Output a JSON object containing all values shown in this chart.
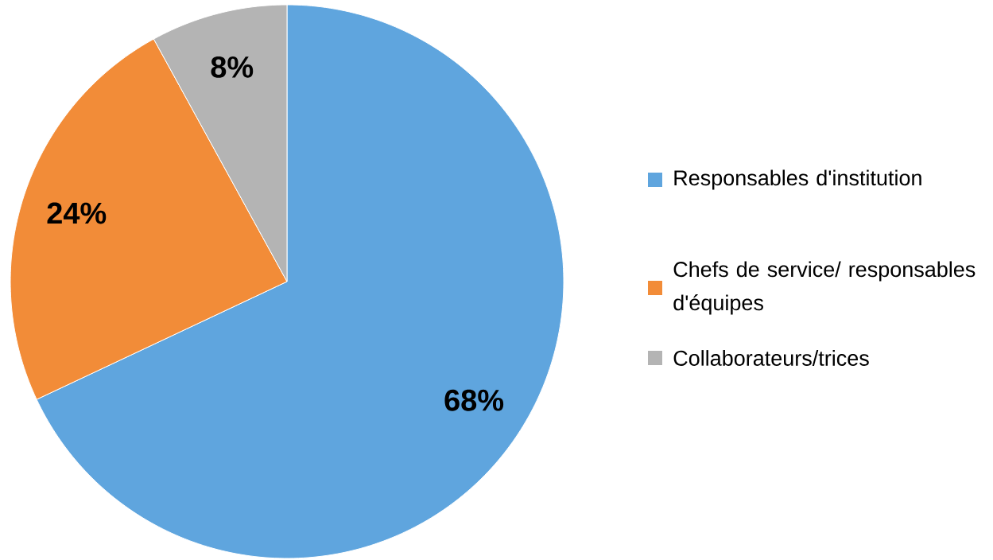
{
  "chart_data": {
    "type": "pie",
    "categories": [
      "Responsables d'institution",
      "Chefs de service/ responsables d'équipes",
      "Collaborateurs/trices"
    ],
    "values": [
      68,
      24,
      8
    ],
    "colors": [
      "#5fa5de",
      "#f28c38",
      "#b4b4b4"
    ],
    "value_labels": [
      "68%",
      "24%",
      "8%"
    ],
    "legend": "right"
  }
}
